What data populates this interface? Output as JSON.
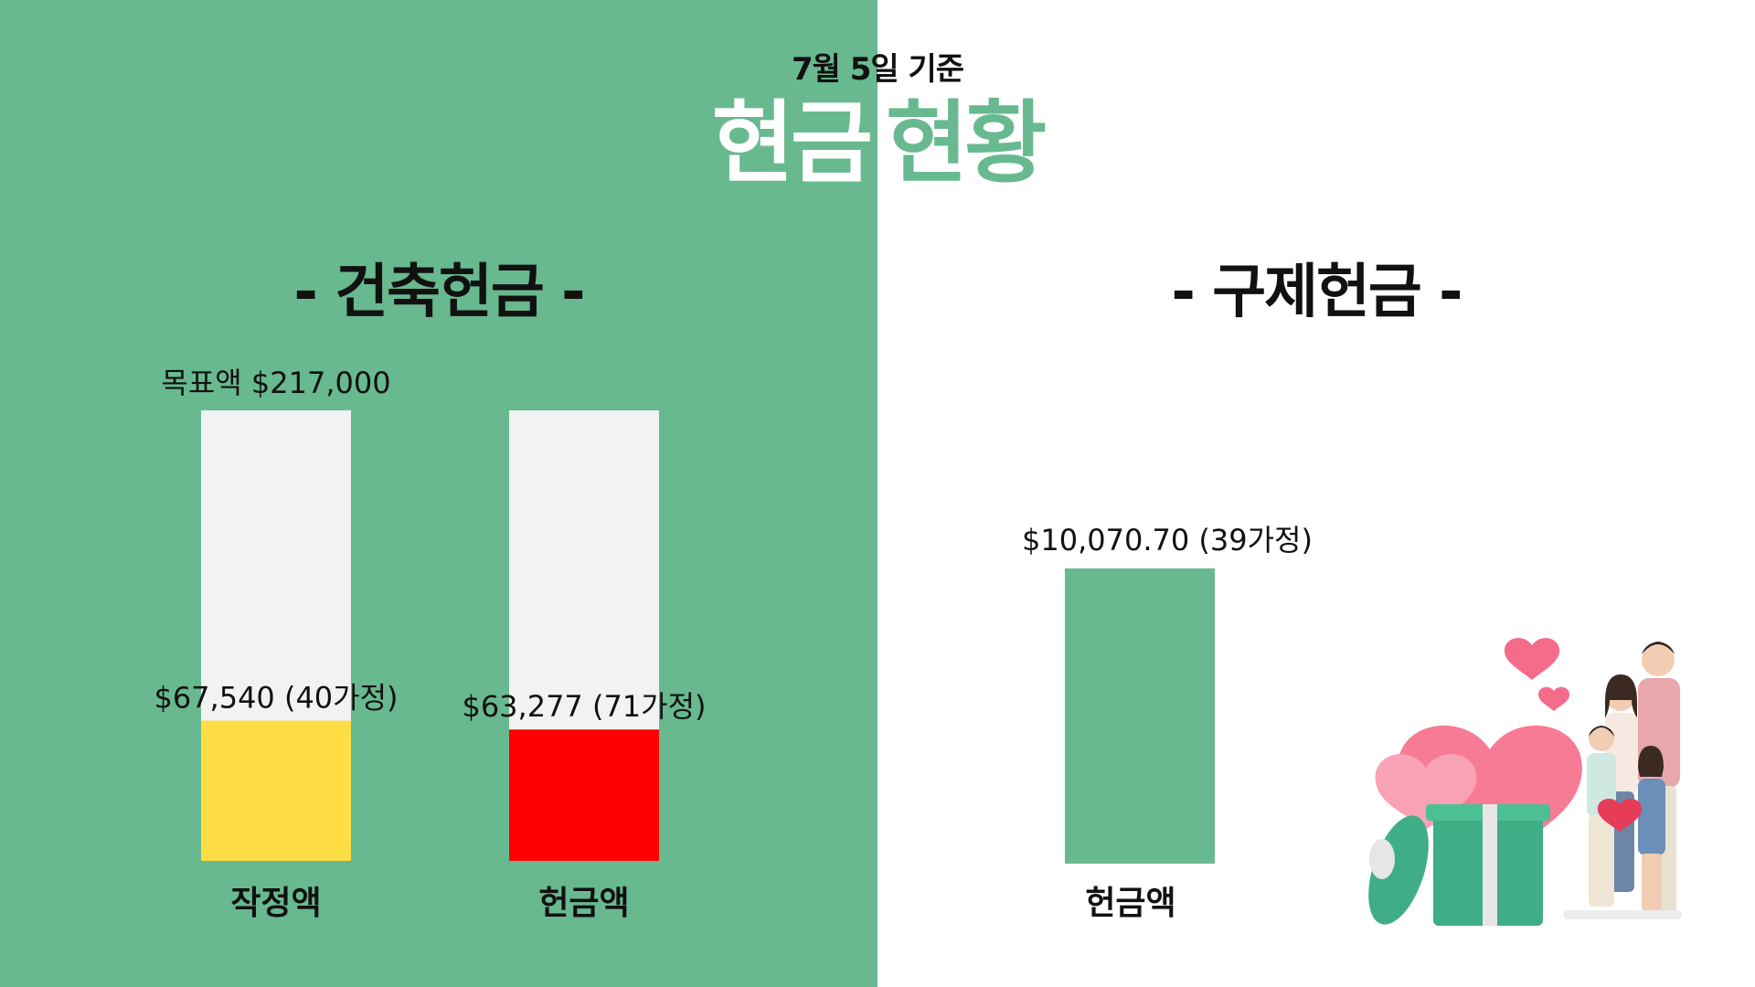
{
  "header": {
    "date_label": "7월 5일 기준",
    "title_part1": "현금",
    "title_part2": "현황"
  },
  "sections": {
    "left_title": "- 건축헌금 -",
    "right_title": "- 구제헌금 -"
  },
  "colors": {
    "left_background": "#68b98f",
    "track": "#f2f2f2",
    "pledged": "#ffdd44",
    "cash": "#ff0000",
    "relief": "#68b98f"
  },
  "chart_data": [
    {
      "type": "bar",
      "target_label": "목표액 $217,000",
      "target": 217000,
      "categories": [
        "작정액",
        "헌금액"
      ],
      "values": [
        67540,
        63277
      ],
      "value_labels": [
        "$67,540 (40가정)",
        "$63,277 (71가정)"
      ],
      "ylim": [
        0,
        217000
      ]
    },
    {
      "type": "bar",
      "categories": [
        "헌금액"
      ],
      "values": [
        10070.7
      ],
      "value_labels": [
        "$10,070.70 (39가정)"
      ]
    }
  ],
  "illustration": {
    "icon": "family-gift-hearts-illustration"
  }
}
